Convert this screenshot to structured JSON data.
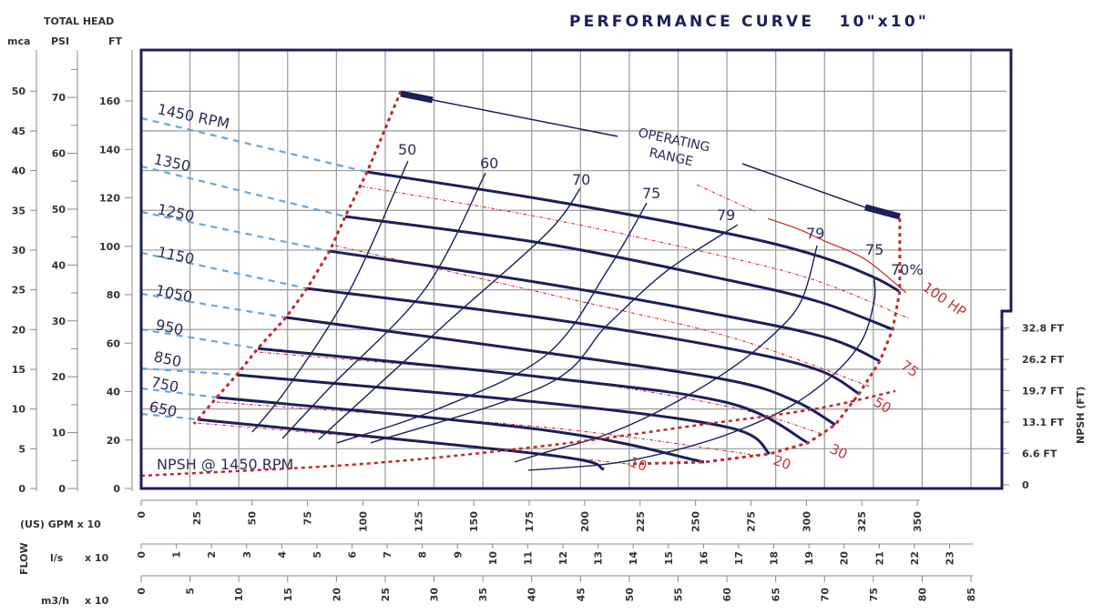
{
  "title": "PERFORMANCE CURVE   10\"x10\"",
  "colors": {
    "curve": "#1c1f5a",
    "grid": "#9a9a9a",
    "red": "#c0282d",
    "blue_dash": "#6aa6d6",
    "text": "#333333"
  },
  "left_axes": {
    "header": "TOTAL HEAD",
    "mca": {
      "label": "mca",
      "ticks": [
        0,
        5,
        10,
        15,
        20,
        25,
        30,
        35,
        40,
        45,
        50
      ]
    },
    "psi": {
      "label": "PSI",
      "ticks": [
        0,
        10,
        20,
        30,
        40,
        50,
        60,
        70
      ]
    },
    "ft": {
      "label": "FT",
      "ticks": [
        0,
        20,
        40,
        60,
        80,
        100,
        120,
        140,
        160
      ]
    }
  },
  "bottom_axes": {
    "flow_label": "FLOW",
    "gpm": {
      "label": "(US) GPM x 10",
      "ticks": [
        0,
        25,
        50,
        75,
        100,
        125,
        150,
        175,
        200,
        225,
        250,
        275,
        300,
        325,
        350
      ]
    },
    "ls": {
      "label": "l/s",
      "mult": "x 10",
      "ticks": [
        0,
        1,
        2,
        3,
        4,
        5,
        6,
        7,
        8,
        9,
        10,
        11,
        12,
        13,
        14,
        15,
        16,
        17,
        18,
        19,
        20,
        21,
        22,
        23
      ]
    },
    "m3h": {
      "label": "m3/h",
      "mult": "x 10",
      "ticks": [
        0,
        5,
        10,
        15,
        20,
        25,
        30,
        35,
        40,
        45,
        50,
        55,
        60,
        65,
        70,
        75,
        80,
        85
      ]
    }
  },
  "npsh_axis": {
    "label": "NPSH (FT)",
    "ticks": [
      {
        "v": 0,
        "t": "0"
      },
      {
        "v": 6.6,
        "t": "6.6 FT"
      },
      {
        "v": 13.1,
        "t": "13.1 FT"
      },
      {
        "v": 19.7,
        "t": "19.7 FT"
      },
      {
        "v": 26.2,
        "t": "26.2 FT"
      },
      {
        "v": 32.8,
        "t": "32.8 FT"
      }
    ]
  },
  "annotations": {
    "operating_range_1": "OPERATING",
    "operating_range_2": "RANGE",
    "npsh_label": "NPSH @ 1450 RPM",
    "eff_70pct": "70%"
  },
  "chart_data": {
    "type": "line",
    "title": "PERFORMANCE CURVE   10\"x10\"",
    "xlabel": "(US) GPM x 10",
    "ylabel": "TOTAL HEAD FT",
    "xlim": [
      0,
      374
    ],
    "ylim": [
      0,
      181
    ],
    "grid": true,
    "head_curves": [
      {
        "name": "1450 RPM",
        "shutoff_head": 152.9,
        "points": [
          [
            101.9,
            130.7
          ],
          [
            182.8,
            119.1
          ],
          [
            264.9,
            105.2
          ],
          [
            306.0,
            95.8
          ],
          [
            330.6,
            87.1
          ],
          [
            341.7,
            81.5
          ]
        ]
      },
      {
        "name": "1350",
        "shutoff_head": 133.0,
        "points": [
          [
            92.0,
            112.3
          ],
          [
            182.8,
            101.0
          ],
          [
            264.9,
            86.0
          ],
          [
            306.0,
            77.0
          ],
          [
            338.9,
            65.7
          ]
        ]
      },
      {
        "name": "1250",
        "shutoff_head": 114.2,
        "points": [
          [
            85.0,
            98.0
          ],
          [
            182.8,
            84.5
          ],
          [
            264.9,
            71.0
          ],
          [
            310.0,
            62.0
          ],
          [
            333.1,
            52.6
          ]
        ]
      },
      {
        "name": "1150",
        "shutoff_head": 97.3,
        "points": [
          [
            74.8,
            82.6
          ],
          [
            182.8,
            70.2
          ],
          [
            264.9,
            57.8
          ],
          [
            305.0,
            49.0
          ],
          [
            323.7,
            39.1
          ]
        ]
      },
      {
        "name": "1050",
        "shutoff_head": 80.4,
        "points": [
          [
            65.3,
            70.6
          ],
          [
            182.8,
            56.0
          ],
          [
            264.9,
            44.7
          ],
          [
            295.0,
            36.0
          ],
          [
            313.0,
            26.3
          ]
        ]
      },
      {
        "name": "950",
        "shutoff_head": 65.7,
        "points": [
          [
            52.6,
            57.8
          ],
          [
            182.8,
            45.8
          ],
          [
            264.9,
            35.3
          ],
          [
            300.7,
            18.8
          ]
        ]
      },
      {
        "name": "850",
        "shutoff_head": 49.6,
        "points": [
          [
            43.1,
            46.9
          ],
          [
            182.8,
            35.3
          ],
          [
            264.9,
            25.2
          ],
          [
            283.4,
            14.3
          ]
        ]
      },
      {
        "name": "750",
        "shutoff_head": 41.3,
        "points": [
          [
            34.1,
            37.6
          ],
          [
            182.8,
            24.0
          ],
          [
            253.8,
            10.9
          ]
        ]
      },
      {
        "name": "650",
        "shutoff_head": 30.8,
        "points": [
          [
            25.5,
            28.5
          ],
          [
            182.8,
            13.9
          ],
          [
            208.7,
            7.9
          ]
        ]
      }
    ],
    "efficiency_curves": [
      {
        "name": "50",
        "points": [
          [
            120.3,
            135.2
          ],
          [
            94.5,
            82.6
          ],
          [
            67.0,
            42.8
          ],
          [
            50.1,
            23.3
          ]
        ]
      },
      {
        "name": "60",
        "points": [
          [
            155.3,
            130.3
          ],
          [
            128.2,
            82.6
          ],
          [
            86.3,
            42.8
          ],
          [
            63.7,
            20.7
          ]
        ]
      },
      {
        "name": "70",
        "points": [
          [
            198.0,
            123.9
          ],
          [
            182.8,
            105.2
          ],
          [
            136.8,
            67.6
          ],
          [
            80.1,
            20.3
          ]
        ]
      },
      {
        "name": "75",
        "points": [
          [
            228.0,
            117.9
          ],
          [
            210.3,
            90.1
          ],
          [
            182.8,
            55.2
          ],
          [
            133.5,
            32.7
          ],
          [
            88.3,
            18.8
          ]
        ]
      },
      {
        "name": "79",
        "points": [
          [
            269.0,
            108.9
          ],
          [
            237.4,
            90.1
          ],
          [
            210.3,
            67.6
          ],
          [
            182.8,
            42.8
          ],
          [
            103.5,
            18.8
          ]
        ]
      },
      {
        "name": "79",
        "points": [
          [
            304.8,
            100.3
          ],
          [
            297.8,
            77.7
          ],
          [
            285.5,
            63.9
          ],
          [
            264.9,
            48.8
          ],
          [
            237.4,
            33.8
          ],
          [
            210.3,
            22.5
          ],
          [
            182.8,
            15.0
          ],
          [
            168.4,
            10.9
          ]
        ]
      },
      {
        "name": "75",
        "points": [
          [
            330.6,
            86.4
          ],
          [
            330.6,
            77.7
          ],
          [
            325.3,
            61.6
          ],
          [
            313.0,
            47.7
          ],
          [
            292.5,
            33.8
          ],
          [
            264.9,
            22.5
          ],
          [
            237.4,
            15.0
          ],
          [
            210.3,
            10.1
          ],
          [
            174.6,
            7.5
          ]
        ]
      }
    ],
    "power_curves": [
      {
        "name": "100 HP",
        "points": [
          [
            250.6,
            125.4
          ],
          [
            277.3,
            114.2
          ],
          [
            282.6,
            111.5
          ],
          [
            296.6,
            107.0
          ],
          [
            308.1,
            102.2
          ],
          [
            326.5,
            94.6
          ],
          [
            345.0,
            80.8
          ]
        ]
      },
      {
        "name": "75",
        "points": [
          [
            99.4,
            124.7
          ],
          [
            182.8,
            111.5
          ],
          [
            264.9,
            95.4
          ],
          [
            306.0,
            85.3
          ],
          [
            346.3,
            70.2
          ]
        ]
      },
      {
        "name": "50",
        "points": [
          [
            87.5,
            100.3
          ],
          [
            182.8,
            80.4
          ],
          [
            264.9,
            62.7
          ],
          [
            328.6,
            42.1
          ]
        ]
      },
      {
        "name": "30",
        "points": [
          [
            53.4,
            56.3
          ],
          [
            182.8,
            45.8
          ],
          [
            264.9,
            33.8
          ],
          [
            308.1,
            22.2
          ]
        ]
      },
      {
        "name": "20",
        "points": [
          [
            34.1,
            35.7
          ],
          [
            182.8,
            25.2
          ],
          [
            279.3,
            13.5
          ]
        ]
      },
      {
        "name": "10",
        "points": [
          [
            25.5,
            27.0
          ],
          [
            121.2,
            19.5
          ],
          [
            219.7,
            10.1
          ]
        ]
      }
    ],
    "min_flow_limit": [
      [
        117.1,
        164.1
      ],
      [
        101.9,
        130.7
      ],
      [
        92.0,
        112.3
      ],
      [
        85.0,
        98.0
      ],
      [
        74.8,
        82.6
      ],
      [
        65.3,
        70.6
      ],
      [
        52.6,
        57.8
      ],
      [
        43.1,
        46.9
      ],
      [
        34.1,
        37.6
      ],
      [
        25.5,
        28.5
      ],
      [
        23.8,
        26.7
      ]
    ],
    "max_flow_limit": [
      [
        342.1,
        111.5
      ],
      [
        342.1,
        81.5
      ],
      [
        338.9,
        65.7
      ],
      [
        333.1,
        52.6
      ],
      [
        323.7,
        39.1
      ],
      [
        313.0,
        26.3
      ],
      [
        300.7,
        18.8
      ],
      [
        283.4,
        14.3
      ],
      [
        253.8,
        10.9
      ],
      [
        219.7,
        10.1
      ]
    ],
    "npsh_1450": {
      "name": "NPSH @ 1450 RPM",
      "points": [
        [
          0,
          1.9
        ],
        [
          100.6,
          4.4
        ],
        [
          182.8,
          8.2
        ],
        [
          251.4,
          12.5
        ],
        [
          303.1,
          15.8
        ],
        [
          340.1,
          19.6
        ]
      ]
    },
    "operating_range": {
      "label": "OPERATING RANGE",
      "start": [
        [
          117.1,
          163.0
        ],
        [
          131.4,
          160.4
        ],
        [
          214.8,
          145.4
        ]
      ],
      "end": [
        [
          271.1,
          134.1
        ],
        [
          326.5,
          116.1
        ],
        [
          342.1,
          112.3
        ]
      ]
    }
  }
}
